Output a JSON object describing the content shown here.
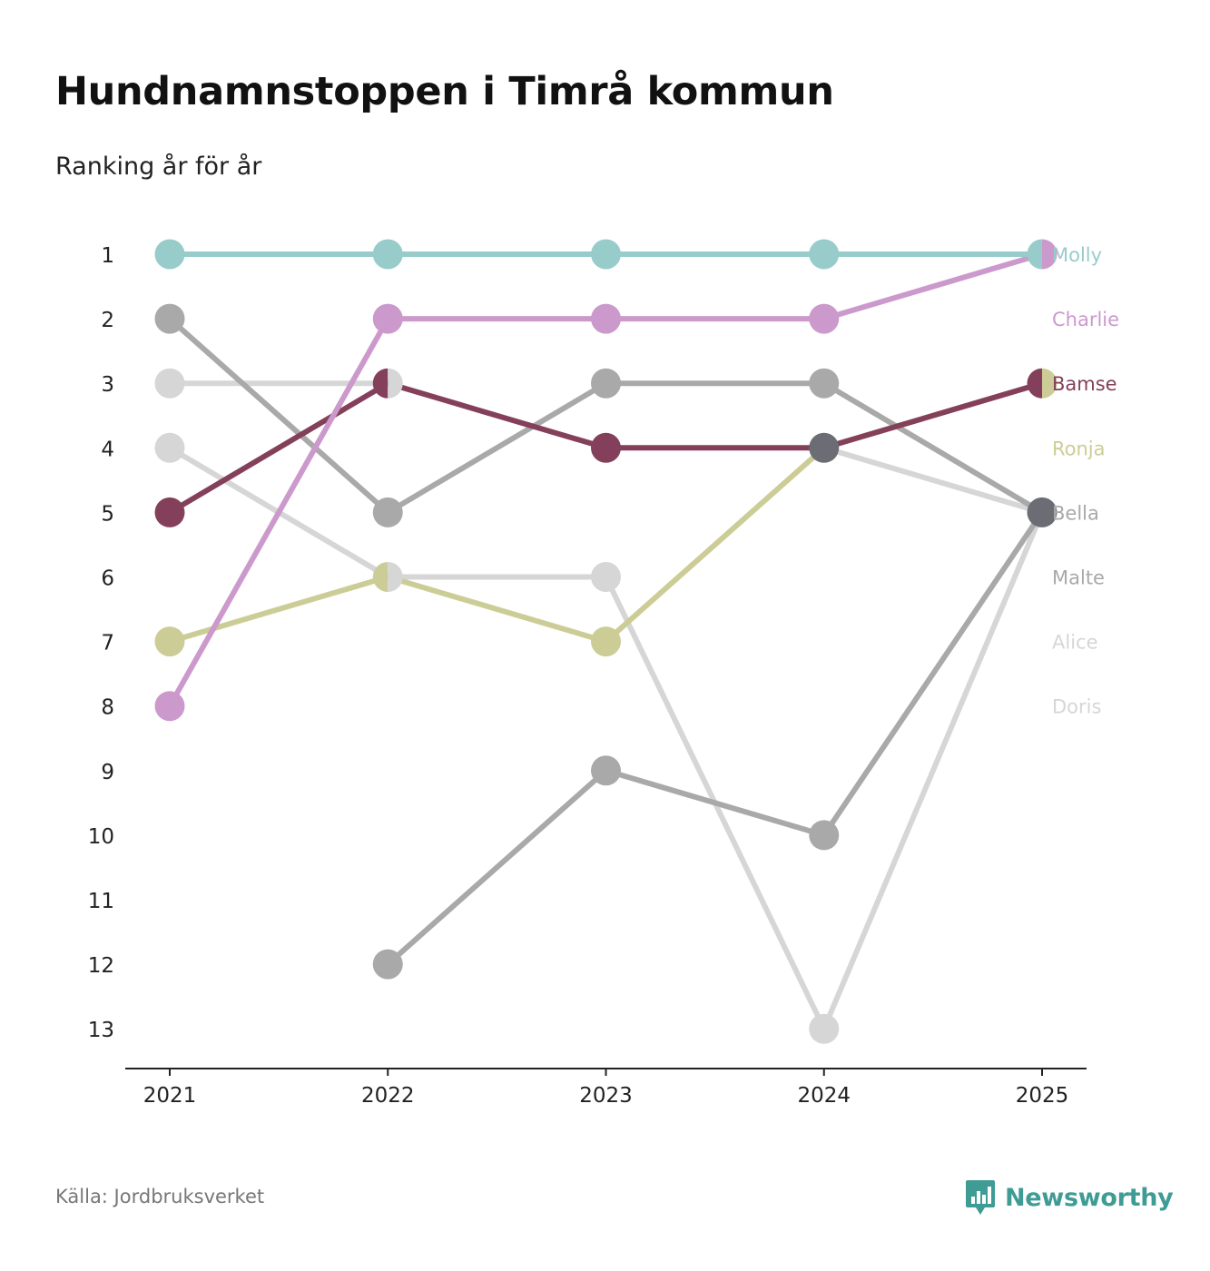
{
  "title": "Hundnamnstoppen i Timrå kommun",
  "subtitle": "Ranking år för år",
  "source": "Källa: Jordbruksverket",
  "brand": {
    "name": "Newsworthy",
    "icon": "newsworthy-logo-icon",
    "color": "#3f9c95"
  },
  "chart_data": {
    "type": "line",
    "title": "Hundnamnstoppen i Timrå kommun",
    "subtitle": "Ranking år för år",
    "xlabel": "",
    "ylabel": "",
    "x": [
      "2021",
      "2022",
      "2023",
      "2024",
      "2025"
    ],
    "ylim": [
      1,
      13
    ],
    "y_inverted": true,
    "y_ticks": [
      "1",
      "2",
      "3",
      "4",
      "5",
      "6",
      "7",
      "8",
      "9",
      "10",
      "11",
      "12",
      "13"
    ],
    "grid": false,
    "legend": "right (end labels)",
    "series": [
      {
        "name": "Doris",
        "color": "#d6d6d6",
        "values": [
          4,
          6,
          6,
          13,
          5
        ]
      },
      {
        "name": "Alice",
        "color": "#d6d6d6",
        "values": [
          3,
          3,
          null,
          4,
          5
        ]
      },
      {
        "name": "Malte",
        "color": "#a9a9aa",
        "values": [
          null,
          12,
          9,
          10,
          5
        ]
      },
      {
        "name": "Bella",
        "color": "#a9a9aa",
        "values": [
          2,
          5,
          3,
          3,
          5
        ]
      },
      {
        "name": "Ronja",
        "color": "#cccd96",
        "values": [
          7,
          6,
          7,
          4,
          3
        ]
      },
      {
        "name": "Bamse",
        "color": "#84405a",
        "values": [
          5,
          3,
          4,
          4,
          3
        ]
      },
      {
        "name": "Charlie",
        "color": "#cc99cd",
        "values": [
          8,
          2,
          2,
          2,
          1
        ]
      },
      {
        "name": "Molly",
        "color": "#98cccb",
        "values": [
          1,
          1,
          1,
          1,
          1
        ]
      }
    ],
    "overlap_color": "#6c6c75"
  }
}
